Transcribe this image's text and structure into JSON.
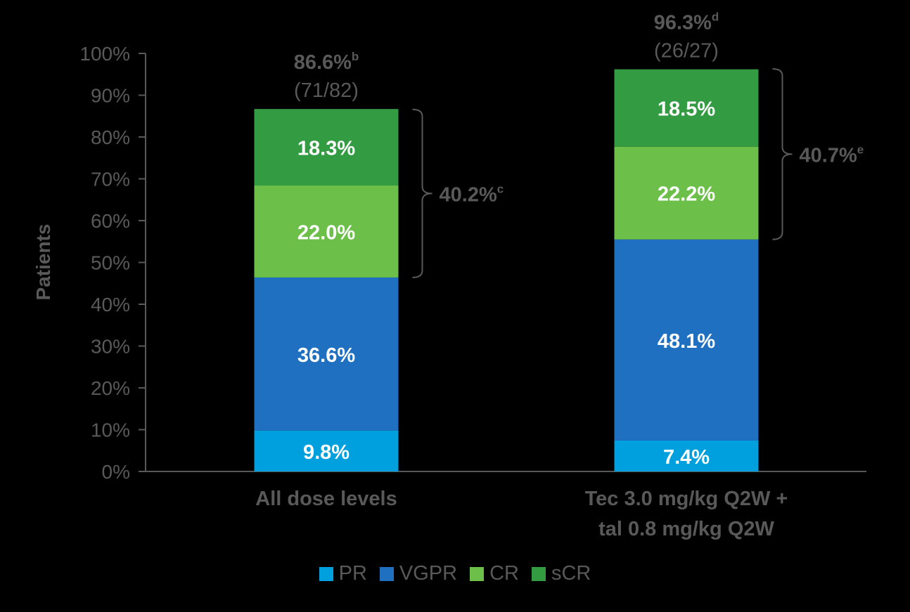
{
  "chart_data": {
    "type": "bar",
    "stacked": true,
    "ylabel": "Patients",
    "xlabel": "",
    "ylim": [
      0,
      100
    ],
    "yticks": [
      "0%",
      "10%",
      "20%",
      "30%",
      "40%",
      "50%",
      "60%",
      "70%",
      "80%",
      "90%",
      "100%"
    ],
    "categories": [
      [
        "All dose levels"
      ],
      [
        "Tec 3.0 mg/kg Q2W +",
        "tal 0.8 mg/kg Q2W"
      ]
    ],
    "series": [
      {
        "name": "PR",
        "color": "#00A0DF",
        "values": [
          9.8,
          7.4
        ],
        "labels": [
          "9.8%",
          "7.4%"
        ]
      },
      {
        "name": "VGPR",
        "color": "#1F70C1",
        "values": [
          36.6,
          48.1
        ],
        "labels": [
          "36.6%",
          "48.1%"
        ]
      },
      {
        "name": "CR",
        "color": "#6CC04A",
        "values": [
          22.0,
          22.2
        ],
        "labels": [
          "22.0%",
          "22.2%"
        ]
      },
      {
        "name": "sCR",
        "color": "#339B42",
        "values": [
          18.3,
          18.5
        ],
        "labels": [
          "18.3%",
          "18.5%"
        ]
      }
    ],
    "totals": [
      {
        "value": "86.6%",
        "sup": "b",
        "fraction": "(71/82)"
      },
      {
        "value": "96.3%",
        "sup": "d",
        "fraction": "(26/27)"
      }
    ],
    "bracket_annotations": [
      {
        "value": "40.2%",
        "sup": "c",
        "from": 46.4,
        "to": 86.6
      },
      {
        "value": "40.7%",
        "sup": "e",
        "from": 55.5,
        "to": 96.3
      }
    ],
    "legend_placement": "bottom",
    "grid": false
  }
}
